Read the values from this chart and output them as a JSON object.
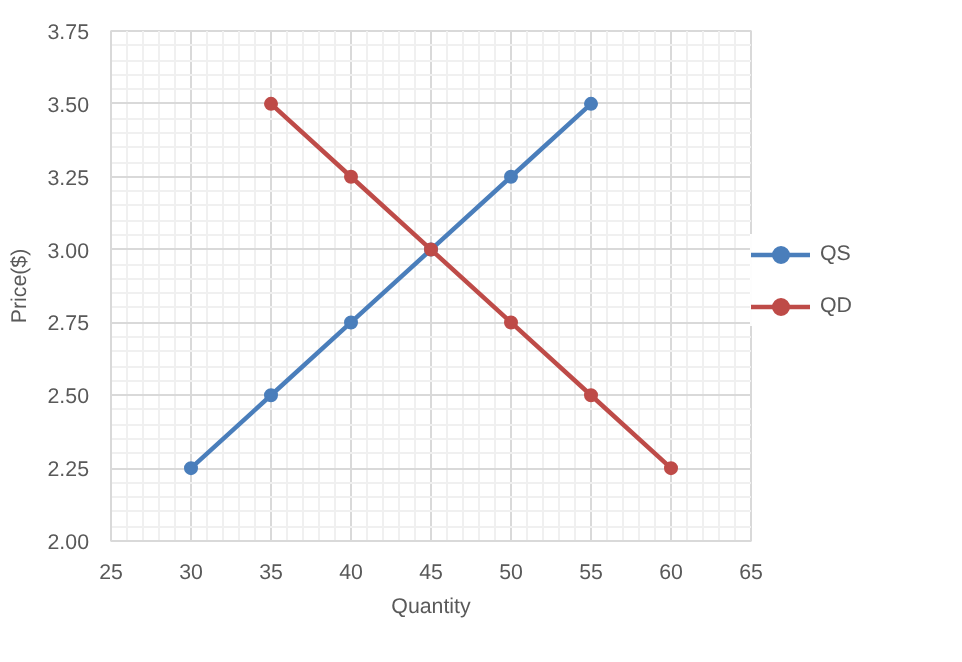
{
  "chart_data": {
    "type": "line",
    "xlabel": "Quantity",
    "ylabel": "Price($)",
    "series": [
      {
        "name": "QS",
        "color": "#4a7ebb",
        "x": [
          30,
          35,
          40,
          45,
          50,
          55
        ],
        "values": [
          2.25,
          2.5,
          2.75,
          3.0,
          3.25,
          3.5
        ]
      },
      {
        "name": "QD",
        "color": "#be4b48",
        "x": [
          35,
          40,
          45,
          50,
          55,
          60
        ],
        "values": [
          3.5,
          3.25,
          3.0,
          2.75,
          2.5,
          2.25
        ]
      }
    ],
    "xlim": [
      25,
      65
    ],
    "xticks": [
      25,
      30,
      35,
      40,
      45,
      50,
      55,
      60,
      65
    ],
    "ylim": [
      2.0,
      3.75
    ],
    "yticks": [
      {
        "value": 2.0,
        "label": "2.00"
      },
      {
        "value": 2.25,
        "label": "2.25"
      },
      {
        "value": 2.5,
        "label": "2.50"
      },
      {
        "value": 2.75,
        "label": "2.75"
      },
      {
        "value": 3.0,
        "label": "3.00"
      },
      {
        "value": 3.25,
        "label": "3.25"
      },
      {
        "value": 3.5,
        "label": "3.50"
      },
      {
        "value": 3.75,
        "label": "3.75"
      }
    ],
    "grid": true,
    "legend": "right",
    "marker": "circle",
    "line_style": "solid"
  }
}
